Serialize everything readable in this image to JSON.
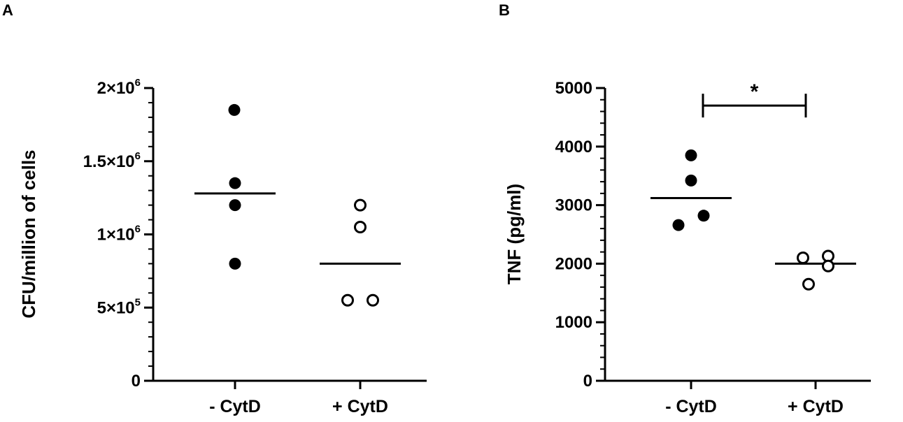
{
  "chart_data": [
    {
      "panel": "A",
      "type": "scatter",
      "ylabel": "CFU/million of cells",
      "ylim": [
        0,
        2000000
      ],
      "categories": [
        "- CytD",
        "+ CytD"
      ],
      "y_ticks": [
        {
          "value": 0,
          "base": "0",
          "exp": ""
        },
        {
          "value": 500000,
          "base": "5×10",
          "exp": "5"
        },
        {
          "value": 1000000,
          "base": "1×10",
          "exp": "6"
        },
        {
          "value": 1500000,
          "base": "1.5×10",
          "exp": "6"
        },
        {
          "value": 2000000,
          "base": "2×10",
          "exp": "6"
        }
      ],
      "minor_ticks_per_major": 5,
      "series": [
        {
          "category": "- CytD",
          "marker": "filled",
          "values": [
            1850000,
            1350000,
            1200000,
            800000
          ],
          "mean": 1280000
        },
        {
          "category": "+ CytD",
          "marker": "open",
          "values": [
            1200000,
            1050000,
            550000,
            550000
          ],
          "mean": 800000
        }
      ]
    },
    {
      "panel": "B",
      "type": "scatter",
      "ylabel": "TNF (pg/ml)",
      "ylim": [
        0,
        5000
      ],
      "categories": [
        "- CytD",
        "+ CytD"
      ],
      "y_ticks": [
        {
          "value": 0,
          "base": "0",
          "exp": ""
        },
        {
          "value": 1000,
          "base": "1000",
          "exp": ""
        },
        {
          "value": 2000,
          "base": "2000",
          "exp": ""
        },
        {
          "value": 3000,
          "base": "3000",
          "exp": ""
        },
        {
          "value": 4000,
          "base": "4000",
          "exp": ""
        },
        {
          "value": 5000,
          "base": "5000",
          "exp": ""
        }
      ],
      "minor_ticks_per_major": 5,
      "series": [
        {
          "category": "- CytD",
          "marker": "filled",
          "values": [
            3850,
            3420,
            2820,
            2660
          ],
          "mean": 3120
        },
        {
          "category": "+ CytD",
          "marker": "open",
          "values": [
            2100,
            2130,
            1960,
            1650
          ],
          "mean": 2000
        }
      ],
      "annotation": {
        "label": "*",
        "between": [
          "- CytD",
          "+ CytD"
        ],
        "y": 4700
      }
    }
  ]
}
